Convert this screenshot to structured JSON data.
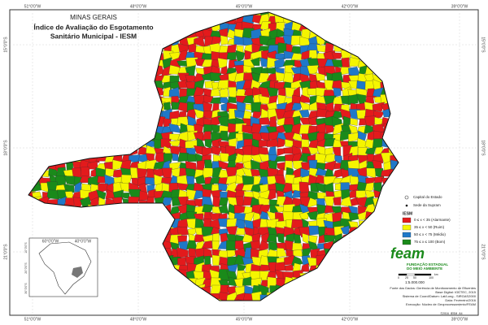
{
  "header": {
    "state": "MINAS GERAIS",
    "title_line1": "Índice de Avaliação do Esgotamento",
    "title_line2": "Sanitário Municipal - IESM"
  },
  "graticule": {
    "top": [
      "51°0'0\"W",
      "48°0'0\"W",
      "45°0'0\"W",
      "42°0'0\"W",
      "39°0'0\"W"
    ],
    "bottom": [
      "51°0'0\"W",
      "48°0'0\"W",
      "45°0'0\"W",
      "42°0'0\"W",
      "39°0'0\"W"
    ],
    "left": [
      "15°0'0\"S",
      "18°0'0\"S",
      "21°0'0\"S"
    ],
    "right": [
      "15°0'0\"S",
      "18°0'0\"S",
      "21°0'0\"S"
    ]
  },
  "inset": {
    "top": [
      "60°0'0\"W",
      "40°0'0\"W"
    ],
    "left": [
      "10°0'0\"S",
      "20°0'0\"S",
      "30°0'0\"S"
    ]
  },
  "legend": {
    "capital": "Capital do Estado",
    "supram": "Sede da Supram",
    "title": "IESM",
    "classes": [
      {
        "label": "0 ≤ x < 35 (Alarmante)",
        "color": "#e31a1c"
      },
      {
        "label": "35 ≤ x < 50 (Ruim)",
        "color": "#f5f500"
      },
      {
        "label": "50 ≤ x < 75 (Médio)",
        "color": "#1f78c8"
      },
      {
        "label": "75 ≤ x ≤ 100 (Bom)",
        "color": "#1a8a1a"
      }
    ]
  },
  "logo": {
    "name": "feam",
    "line1": "FUNDAÇÃO ESTADUAL",
    "line2": "DO MEIO AMBIENTE"
  },
  "scale": {
    "ratio": "1:5.000.000",
    "ticks": [
      "0",
      "25",
      "50",
      "100"
    ],
    "unit": "km"
  },
  "credits": [
    "Fonte dos Dados: Gerência de Monitoramento de Efluentes",
    "Base Digital: IGETEC, 2015",
    "Sistema de Coord/Datum: Lat/Long - SIRGAS2000",
    "Data: Fevereiro/2016",
    "Execução: Núcleo de Geoprocessamento/FEAM"
  ],
  "code": "©2016_IESM_A4"
}
